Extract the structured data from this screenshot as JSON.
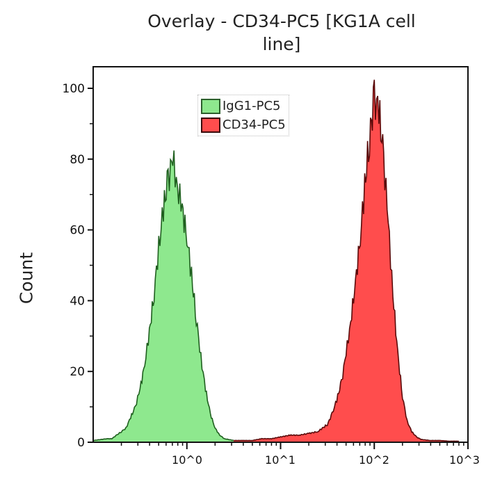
{
  "chart_data": {
    "type": "area",
    "title": "Overlay - CD34-PC5 [KG1A cell line]",
    "title_lines": [
      "Overlay - CD34-PC5 [KG1A cell",
      "line]"
    ],
    "xlabel": "",
    "ylabel": "Count",
    "xscale": "log",
    "xlim": [
      0.1,
      1000
    ],
    "ylim": [
      0,
      100
    ],
    "grid": false,
    "legend_position": "top-center",
    "x_ticks": [
      {
        "value": 1,
        "label": "10^0"
      },
      {
        "value": 10,
        "label": "10^1"
      },
      {
        "value": 100,
        "label": "10^2"
      },
      {
        "value": 1000,
        "label": "10^3"
      }
    ],
    "y_ticks": [
      0,
      20,
      40,
      60,
      80,
      100
    ],
    "series": [
      {
        "name": "IgG1-PC5",
        "color": "#8ee88e",
        "line_color": "#1f5f1f",
        "x": [
          0.1,
          0.141,
          0.158,
          0.178,
          0.2,
          0.224,
          0.251,
          0.282,
          0.316,
          0.355,
          0.398,
          0.447,
          0.501,
          0.562,
          0.631,
          0.708,
          0.794,
          0.891,
          1,
          1.12,
          1.26,
          1.41,
          1.58,
          1.78,
          2,
          2.24,
          2.51,
          3.16
        ],
        "y": [
          0.5,
          1,
          1,
          2,
          3,
          4,
          7,
          10,
          15,
          22,
          31,
          42,
          55,
          66,
          74,
          80,
          72,
          66,
          58,
          47,
          35,
          24,
          15,
          8,
          4,
          2,
          1,
          0.5
        ]
      },
      {
        "name": "CD34-PC5",
        "color": "#ff4d4d",
        "line_color": "#5a0a0a",
        "x": [
          3.16,
          3.98,
          5,
          6.3,
          8,
          10,
          12.6,
          15.8,
          20,
          25,
          28,
          31.6,
          35.5,
          39.8,
          44.7,
          50,
          56,
          63,
          71,
          79,
          89,
          100,
          112,
          126,
          141,
          158,
          178,
          200,
          224,
          251,
          282,
          316,
          398,
          500,
          631,
          800
        ],
        "y": [
          0.5,
          0.5,
          0.5,
          1,
          1,
          1.5,
          2,
          2,
          2.5,
          3,
          4,
          5,
          8,
          12,
          17,
          25,
          34,
          45,
          58,
          72,
          86,
          97,
          94,
          80,
          62,
          42,
          25,
          13,
          6,
          3,
          1.5,
          0.8,
          0.5,
          0.5,
          0.3,
          0.3
        ]
      }
    ]
  }
}
